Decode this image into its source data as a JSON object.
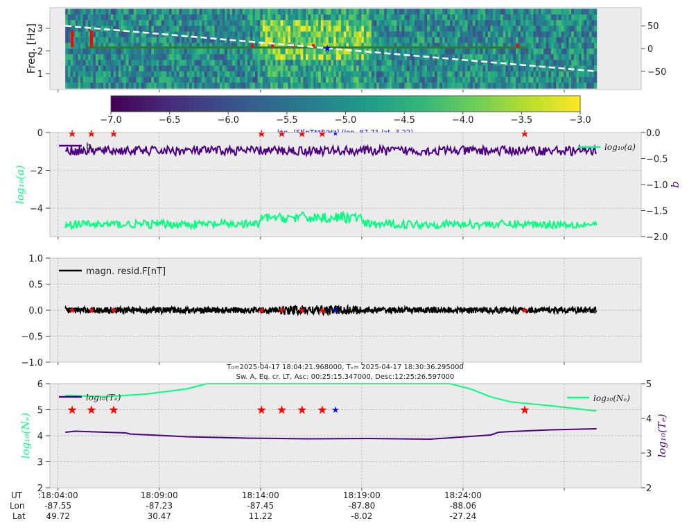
{
  "colors": {
    "panel_bg": "#ebebeb",
    "grid": "#b0b0b0",
    "purple": "#4b0082",
    "green": "#00ff7f",
    "red": "#ff0000",
    "blue": "#0000ff",
    "black": "#000000",
    "white": "#ffffff",
    "darkgreen": "#2e7d32"
  },
  "chart_data": [
    {
      "type": "heatmap",
      "name": "spectrogram",
      "ylabel": "Freq. [Hz]",
      "yticks": [
        "1",
        "2",
        "3"
      ],
      "ylim": [
        0.3,
        3.9
      ],
      "right_yticks": [
        "50",
        "0",
        "−50"
      ],
      "right_ylim": [
        -90,
        90
      ],
      "colorbar": {
        "ticks": [
          "−7.0",
          "−6.5",
          "−6.0",
          "−5.5",
          "−5.0",
          "−4.5",
          "−4.0",
          "−3.5",
          "−3.0"
        ],
        "range": [
          -7.0,
          -3.0
        ],
        "colormap": "viridis",
        "label": "log₁₀(F)[nT**2/Hz] (lon -87.71 lat -3.22)"
      },
      "dashed_line": {
        "x": [
          0.0,
          26.24
        ],
        "y": [
          3.1,
          1.1
        ],
        "color": "white"
      },
      "green_line_y": 2.15,
      "red_bar_x": [
        0.7,
        1.65,
        9.6,
        10.6,
        11.6,
        12.6,
        22.7
      ],
      "blue_marker": {
        "x": 13.3,
        "y": 0
      },
      "high_power_x_range": [
        10.0,
        15.5
      ]
    },
    {
      "type": "line",
      "name": "log-a-and-b",
      "ylabel": "log₁₀(a)",
      "yticks": [
        "0",
        "−2",
        "−4"
      ],
      "ylim": [
        -5.5,
        0
      ],
      "right_ylabel": "b",
      "right_yticks": [
        "0.0",
        "−0.5",
        "−1.0",
        "−1.5",
        "−2.0"
      ],
      "right_ylim": [
        -2.0,
        0.0
      ],
      "series": [
        {
          "name": "b",
          "axis": "right",
          "level": -0.35,
          "amplitude": 0.09
        },
        {
          "name": "log₁₀(a)",
          "axis": "left",
          "level": -4.85,
          "amplitude": 0.22
        }
      ],
      "legend": [
        "b",
        "log₁₀(a)"
      ]
    },
    {
      "type": "line",
      "name": "magnetic-residual",
      "legend": [
        "magn. resid.F[nT]"
      ],
      "yticks": [
        "1.0",
        "0.5",
        "0.0",
        "−0.5",
        "−1.0"
      ],
      "ylim": [
        -1.0,
        1.0
      ],
      "series": [
        {
          "name": "magn. resid.F[nT]",
          "level": 0.0,
          "amplitude": 0.06
        }
      ]
    },
    {
      "type": "line",
      "name": "electron-temperature-density",
      "title_line1": "T₀=2025-04-17 18:04:21.968000, Tₙ= 2025-04-17 18:30:36.295000",
      "title_line2": "Sw. A, Eq. cr. LT, Asc: 00:25:15.347000, Desc:12:25:26.597000",
      "ylabel": "log₁₀(Nₑ)",
      "yticks": [
        "6",
        "5",
        "4",
        "3",
        "2"
      ],
      "ylim": [
        2,
        6
      ],
      "right_ylabel": "log₁₀(Tₑ)",
      "right_yticks": [
        "5",
        "4",
        "3",
        "2"
      ],
      "right_ylim": [
        2,
        5
      ],
      "series": [
        {
          "name": "log₁₀(Tₑ)",
          "axis": "right",
          "x": [
            0,
            0.5,
            1,
            3,
            3.2,
            6,
            9,
            12,
            15,
            18,
            21,
            21.4,
            22,
            24,
            26.24
          ],
          "y": [
            3.6,
            3.63,
            3.62,
            3.58,
            3.55,
            3.47,
            3.43,
            3.41,
            3.42,
            3.4,
            3.52,
            3.6,
            3.62,
            3.67,
            3.7
          ]
        },
        {
          "name": "log₁₀(Nₑ)",
          "axis": "left",
          "x": [
            0,
            2,
            4,
            6,
            7,
            8,
            18,
            19,
            20,
            21,
            22,
            24,
            26.24
          ],
          "y": [
            5.55,
            5.5,
            5.6,
            5.8,
            6.0,
            6.15,
            6.15,
            6.05,
            5.8,
            5.5,
            5.3,
            5.15,
            4.95
          ]
        }
      ],
      "legend": [
        "log₁₀(Tₑ)",
        "log₁₀(Nₑ)"
      ]
    }
  ],
  "markers": {
    "red_stars_x": [
      0.7,
      1.65,
      2.75,
      10.05,
      11.05,
      12.05,
      13.05,
      23.05
    ],
    "blue_star_x": 13.7
  },
  "time_axis": {
    "row_labels": [
      "UT",
      "Lon",
      "Lat"
    ],
    "separators": [
      "",
      ":",
      ":"
    ],
    "columns": [
      {
        "ut": ":18:04:00",
        "lon": "-87.55",
        "lat": "49.72"
      },
      {
        "ut": "18:09:00",
        "lon": "-87.23",
        "lat": "30.47"
      },
      {
        "ut": "18:14:00",
        "lon": "-87.45",
        "lat": "11.22"
      },
      {
        "ut": "18:19:00",
        "lon": "-87.80",
        "lat": "-8.02"
      },
      {
        "ut": "18:24:00",
        "lon": "-88.06",
        "lat": "-27.24"
      }
    ]
  }
}
